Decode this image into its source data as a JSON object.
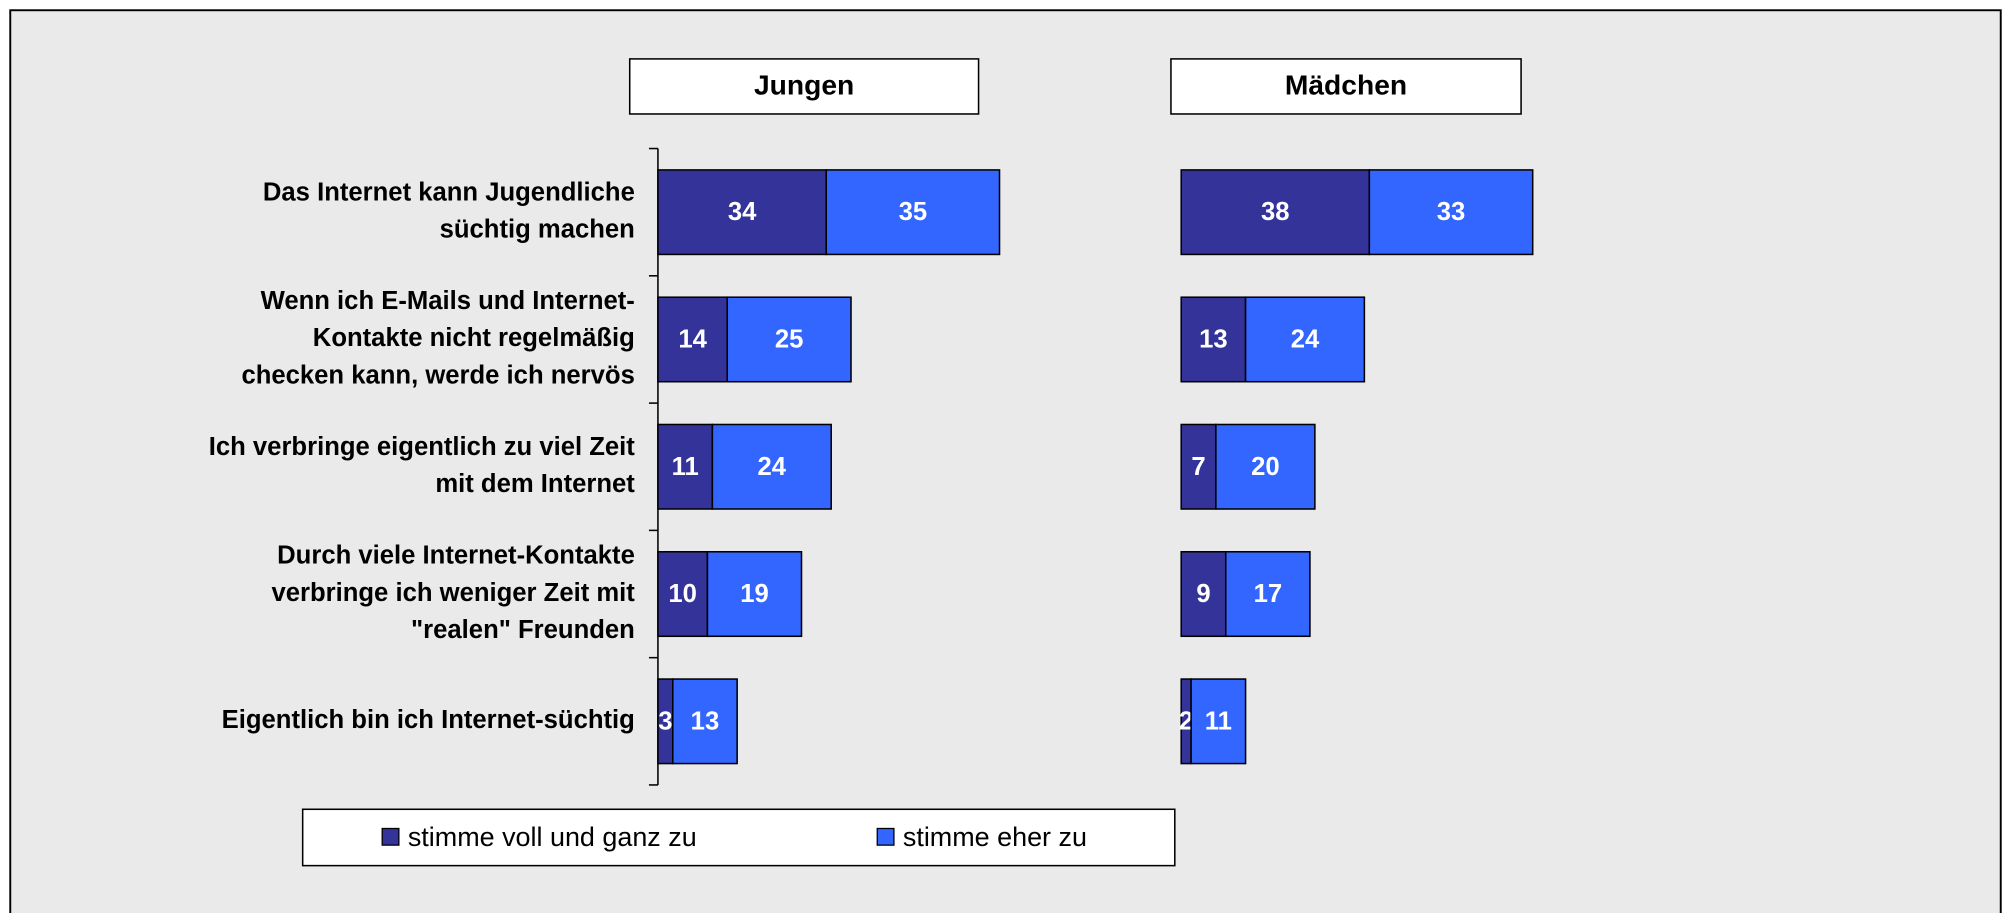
{
  "chart_data": {
    "type": "bar",
    "orientation": "horizontal",
    "stacked": true,
    "categories": [
      [
        "Das Internet kann Jugendliche",
        "süchtig machen"
      ],
      [
        "Wenn ich E-Mails und Internet-",
        "Kontakte nicht regelmäßig",
        "checken kann, werde ich nervös"
      ],
      [
        "Ich verbringe eigentlich zu viel Zeit",
        "mit dem Internet"
      ],
      [
        "Durch viele Internet-Kontakte",
        "verbringe ich weniger Zeit mit",
        "\"realen\" Freunden"
      ],
      [
        "Eigentlich bin ich Internet-süchtig"
      ]
    ],
    "legend": [
      {
        "name": "stimme voll und ganz zu",
        "color": "#333399"
      },
      {
        "name": "stimme eher zu",
        "color": "#3366ff"
      }
    ],
    "panels": [
      {
        "title": "Jungen",
        "series": [
          [
            34,
            14,
            11,
            10,
            3
          ],
          [
            35,
            25,
            24,
            19,
            13
          ]
        ]
      },
      {
        "title": "Mädchen",
        "series": [
          [
            38,
            13,
            7,
            9,
            2
          ],
          [
            33,
            24,
            20,
            17,
            11
          ]
        ]
      }
    ]
  }
}
